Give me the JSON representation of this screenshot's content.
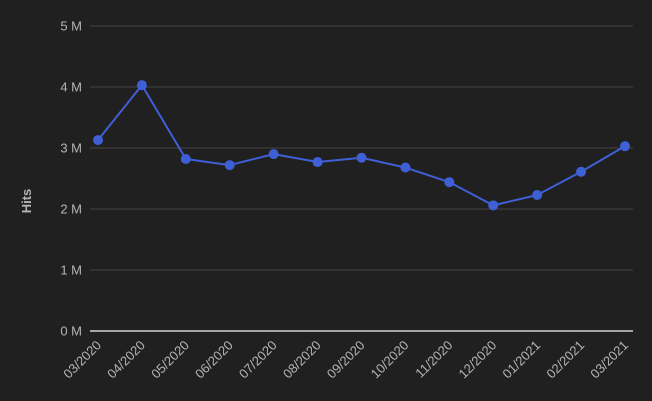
{
  "chart_data": {
    "type": "line",
    "title": "",
    "xlabel": "",
    "ylabel": "Hits",
    "categories": [
      "03/2020",
      "04/2020",
      "05/2020",
      "06/2020",
      "07/2020",
      "08/2020",
      "09/2020",
      "10/2020",
      "11/2020",
      "12/2020",
      "01/2021",
      "02/2021",
      "03/2021"
    ],
    "series": [
      {
        "values": [
          3130000,
          4030000,
          2820000,
          2720000,
          2900000,
          2770000,
          2840000,
          2680000,
          2440000,
          2060000,
          2230000,
          2610000,
          3030000
        ]
      }
    ],
    "ylim": [
      0,
      5000000
    ],
    "y_ticks": [
      {
        "value": 0,
        "label": "0 M"
      },
      {
        "value": 1000000,
        "label": "1 M"
      },
      {
        "value": 2000000,
        "label": "2 M"
      },
      {
        "value": 3000000,
        "label": "3 M"
      },
      {
        "value": 4000000,
        "label": "4 M"
      },
      {
        "value": 5000000,
        "label": "5 M"
      }
    ],
    "grid": true,
    "legend": "none",
    "colors": {
      "background": "#202020",
      "line": "#3f5fd6",
      "grid": "#444444",
      "baseline": "#cfcfcf",
      "text": "#b5b5b5"
    }
  }
}
